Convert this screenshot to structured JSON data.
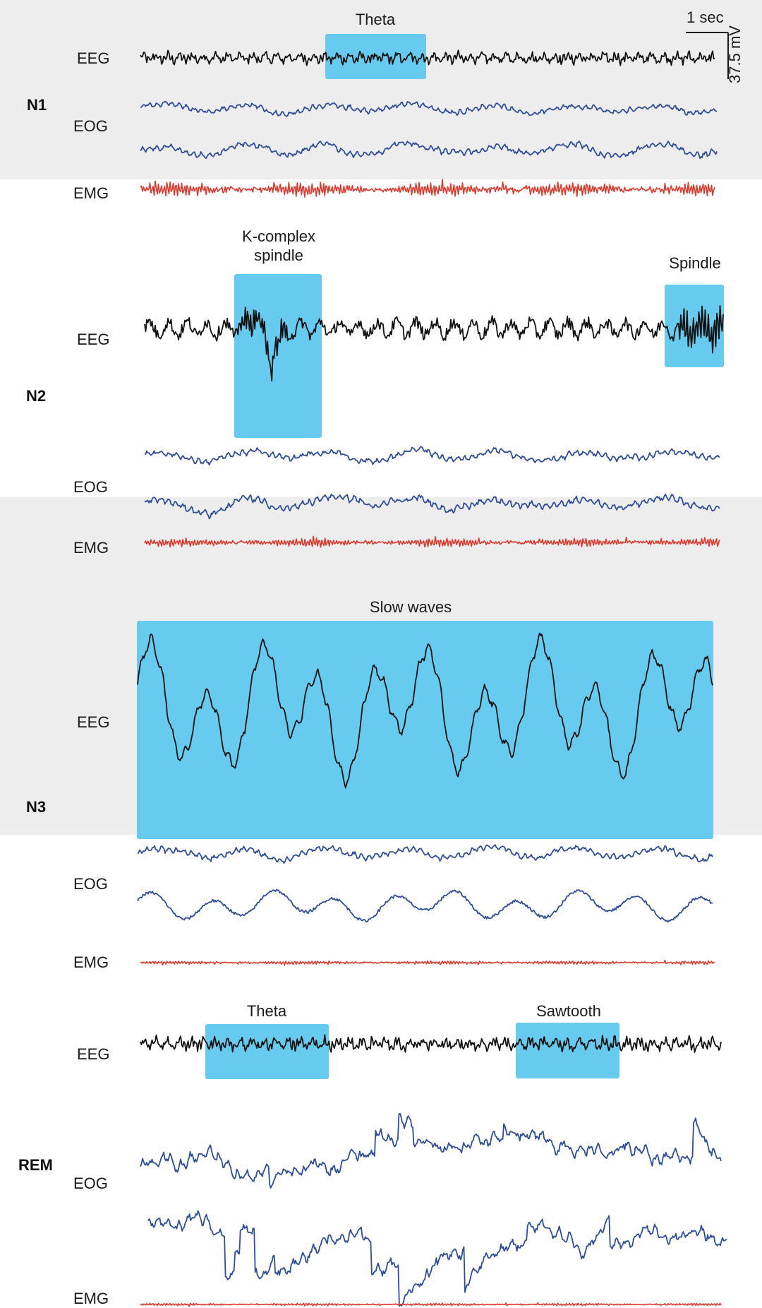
{
  "scale_bar": {
    "time_label": "1 sec",
    "amplitude_label": "37.5 mV"
  },
  "colors": {
    "EEG": "#111111",
    "EOG": "#2f4e9a",
    "EMG": "#e0372b",
    "highlight": "#66cbee",
    "panel_gray": "#ededed"
  },
  "stages": [
    {
      "id": "N1",
      "label": "N1",
      "channel_labels": {
        "eeg": "EEG",
        "eog": "EOG",
        "emg": "EMG"
      },
      "annotations": [
        {
          "text": "Theta"
        }
      ],
      "traces": [
        {
          "channel": "EEG",
          "character": "low-amplitude mixed frequency"
        },
        {
          "channel": "EOG",
          "character": "slow rolling"
        },
        {
          "channel": "EOG",
          "character": "slow rolling"
        },
        {
          "channel": "EMG",
          "character": "moderate tone"
        }
      ]
    },
    {
      "id": "N2",
      "label": "N2",
      "channel_labels": {
        "eeg": "EEG",
        "eog": "EOG",
        "emg": "EMG"
      },
      "annotations": [
        {
          "text": "K-complex\nspindle"
        },
        {
          "text": "Spindle"
        }
      ],
      "traces": [
        {
          "channel": "EEG",
          "character": "K-complex and spindles"
        },
        {
          "channel": "EOG",
          "character": "low amplitude"
        },
        {
          "channel": "EOG",
          "character": "low amplitude"
        },
        {
          "channel": "EMG",
          "character": "reduced tone"
        }
      ]
    },
    {
      "id": "N3",
      "label": "N3",
      "channel_labels": {
        "eeg": "EEG",
        "eog": "EOG",
        "emg": "EMG"
      },
      "annotations": [
        {
          "text": "Slow waves"
        }
      ],
      "traces": [
        {
          "channel": "EEG",
          "character": "high-amplitude slow waves"
        },
        {
          "channel": "EOG",
          "character": "slow"
        },
        {
          "channel": "EOG",
          "character": "slow"
        },
        {
          "channel": "EMG",
          "character": "low tone"
        }
      ]
    },
    {
      "id": "REM",
      "label": "REM",
      "channel_labels": {
        "eeg": "EEG",
        "eog": "EOG",
        "emg": "EMG"
      },
      "annotations": [
        {
          "text": "Theta"
        },
        {
          "text": "Sawtooth"
        }
      ],
      "traces": [
        {
          "channel": "EEG",
          "character": "low-amplitude theta, sawtooth waves"
        },
        {
          "channel": "EOG",
          "character": "rapid eye movements"
        },
        {
          "channel": "EOG",
          "character": "rapid eye movements"
        },
        {
          "channel": "EMG",
          "character": "atonia"
        }
      ]
    }
  ]
}
